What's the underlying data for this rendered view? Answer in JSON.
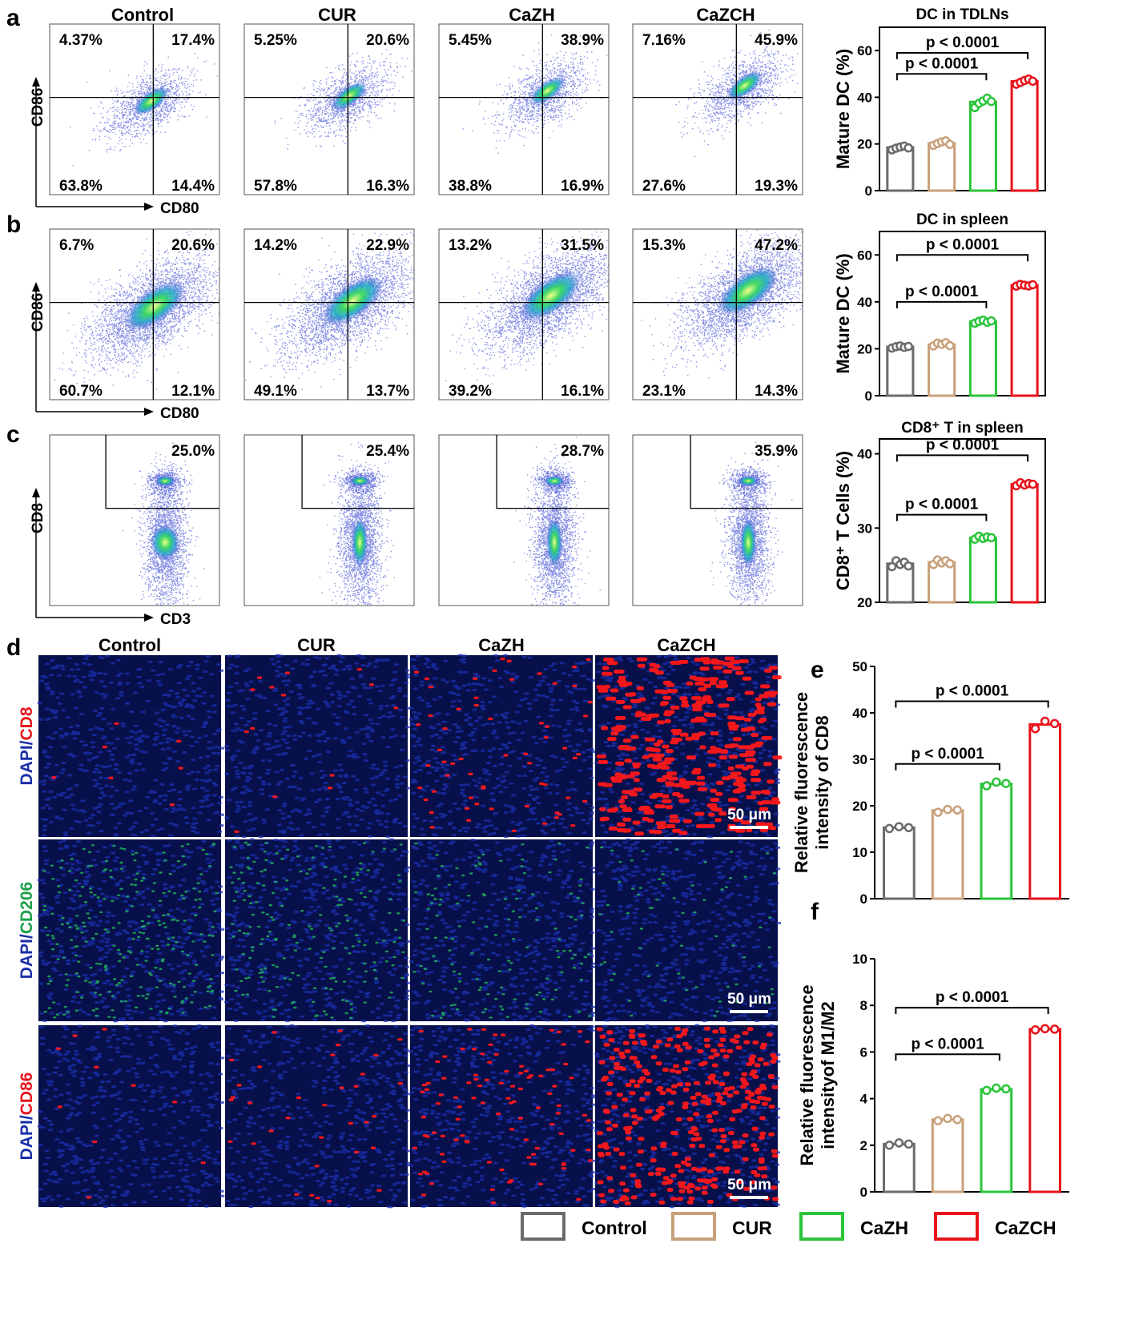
{
  "panel_letters": [
    "a",
    "b",
    "c",
    "d",
    "e",
    "f"
  ],
  "flow": {
    "groups": [
      "Control",
      "CUR",
      "CaZH",
      "CaZCH"
    ],
    "rows": [
      {
        "letter": "a",
        "x_label": "CD80",
        "y_label": "CD86",
        "quadrants": [
          {
            "ul": "4.37%",
            "ur": "17.4%",
            "ll": "63.8%",
            "lr": "14.4%"
          },
          {
            "ul": "5.25%",
            "ur": "20.6%",
            "ll": "57.8%",
            "lr": "16.3%"
          },
          {
            "ul": "5.45%",
            "ur": "38.9%",
            "ll": "38.8%",
            "lr": "16.9%"
          },
          {
            "ul": "7.16%",
            "ur": "45.9%",
            "ll": "27.6%",
            "lr": "19.3%"
          }
        ]
      },
      {
        "letter": "b",
        "x_label": "CD80",
        "y_label": "CD86",
        "quadrants": [
          {
            "ul": "6.7%",
            "ur": "20.6%",
            "ll": "60.7%",
            "lr": "12.1%"
          },
          {
            "ul": "14.2%",
            "ur": "22.9%",
            "ll": "49.1%",
            "lr": "13.7%"
          },
          {
            "ul": "13.2%",
            "ur": "31.5%",
            "ll": "39.2%",
            "lr": "16.1%"
          },
          {
            "ul": "15.3%",
            "ur": "47.2%",
            "ll": "23.1%",
            "lr": "14.3%"
          }
        ]
      },
      {
        "letter": "c",
        "x_label": "CD3",
        "y_label": "CD8",
        "gate": [
          "25.0%",
          "25.4%",
          "28.7%",
          "35.9%"
        ]
      }
    ]
  },
  "microscopy": {
    "letter": "d",
    "columns": [
      "Control",
      "CUR",
      "CaZH",
      "CaZCH"
    ],
    "rows": [
      {
        "stain_a": "DAPI",
        "sep": "/",
        "stain_b": "CD8",
        "stain_b_color": "#e8141c"
      },
      {
        "stain_a": "DAPI",
        "sep": "/",
        "stain_b": "CD206",
        "stain_b_color": "#1aa04a"
      },
      {
        "stain_a": "DAPI",
        "sep": "/",
        "stain_b": "CD86",
        "stain_b_color": "#e8141c"
      }
    ],
    "scale_bar": "50 μm",
    "dapi_color": "#1a2fa8"
  },
  "legend": [
    "Control",
    "CUR",
    "CaZH",
    "CaZCH"
  ],
  "group_colors": [
    "#6b6b6b",
    "#c8a07a",
    "#2bc43a",
    "#e8141c"
  ],
  "chart_data": [
    {
      "type": "bar",
      "title": "DC in TDLNs",
      "ylabel": "Mature DC (%)",
      "categories": [
        "Control",
        "CUR",
        "CaZH",
        "CaZCH"
      ],
      "values": [
        18.5,
        20.3,
        38.0,
        46.8
      ],
      "points": [
        [
          17.5,
          18.2,
          18.7,
          19.1,
          18.3
        ],
        [
          19.4,
          20.2,
          20.9,
          21.3,
          19.8
        ],
        [
          35.6,
          37.4,
          38.4,
          39.6,
          38.2
        ],
        [
          45.6,
          46.4,
          47.2,
          47.8,
          46.9
        ]
      ],
      "ylim": [
        0,
        70
      ],
      "yticks": [
        0,
        20,
        40,
        60
      ],
      "annotations": [
        {
          "text": "p < 0.0001",
          "from": 0,
          "to": 2
        },
        {
          "text": "p < 0.0001",
          "from": 0,
          "to": 3
        }
      ]
    },
    {
      "type": "bar",
      "title": "DC in spleen",
      "ylabel": "Mature DC (%)",
      "categories": [
        "Control",
        "CUR",
        "CaZH",
        "CaZCH"
      ],
      "values": [
        20.8,
        21.8,
        31.6,
        47.0
      ],
      "points": [
        [
          20.3,
          20.9,
          21.2,
          20.6,
          21.0
        ],
        [
          21.2,
          22.4,
          21.9,
          22.6,
          21.3
        ],
        [
          30.9,
          31.7,
          32.2,
          31.3,
          31.9
        ],
        [
          46.7,
          47.4,
          47.1,
          46.8,
          47.3
        ]
      ],
      "ylim": [
        0,
        70
      ],
      "yticks": [
        0,
        20,
        40,
        60
      ],
      "annotations": [
        {
          "text": "p < 0.0001",
          "from": 0,
          "to": 2
        },
        {
          "text": "p < 0.0001",
          "from": 0,
          "to": 3
        }
      ]
    },
    {
      "type": "bar",
      "title": "CD8⁺ T in spleen",
      "ylabel": "CD8⁺ T Cells (%)",
      "categories": [
        "Control",
        "CUR",
        "CaZH",
        "CaZCH"
      ],
      "values": [
        25.2,
        25.4,
        28.7,
        35.9
      ],
      "points": [
        [
          24.8,
          25.6,
          25.1,
          25.4,
          24.9
        ],
        [
          25.1,
          25.7,
          25.3,
          25.6,
          25.2
        ],
        [
          28.5,
          28.9,
          28.6,
          28.8,
          28.7
        ],
        [
          35.7,
          36.1,
          35.8,
          36.0,
          35.9
        ]
      ],
      "ylim": [
        20,
        42
      ],
      "yticks": [
        20,
        30,
        40
      ],
      "annotations": [
        {
          "text": "p < 0.0001",
          "from": 0,
          "to": 2
        },
        {
          "text": "p < 0.0001",
          "from": 0,
          "to": 3
        }
      ]
    },
    {
      "type": "bar",
      "title": "",
      "ylabel": "Relative fluorescence intensity of CD8",
      "ylabel_lines": [
        "Relative fluorescence",
        "intensity of CD8"
      ],
      "categories": [
        "Control",
        "CUR",
        "CaZH",
        "CaZCH"
      ],
      "values": [
        15.3,
        19.0,
        24.7,
        37.5
      ],
      "points": [
        [
          15.1,
          15.5,
          15.3
        ],
        [
          18.6,
          19.2,
          19.1
        ],
        [
          24.3,
          25.1,
          24.8
        ],
        [
          36.6,
          38.2,
          37.7
        ]
      ],
      "ylim": [
        0,
        50
      ],
      "yticks": [
        0,
        10,
        20,
        30,
        40,
        50
      ],
      "annotations": [
        {
          "text": "p < 0.0001",
          "from": 0,
          "to": 2
        },
        {
          "text": "p < 0.0001",
          "from": 0,
          "to": 3
        }
      ]
    },
    {
      "type": "bar",
      "title": "",
      "ylabel": "Relative fluorescence intensityof M1/M2",
      "ylabel_lines": [
        "Relative fluorescence",
        "intensityof M1/M2"
      ],
      "categories": [
        "Control",
        "CUR",
        "CaZH",
        "CaZCH"
      ],
      "values": [
        2.05,
        3.1,
        4.4,
        6.98
      ],
      "points": [
        [
          2.0,
          2.1,
          2.05
        ],
        [
          3.05,
          3.15,
          3.1
        ],
        [
          4.35,
          4.45,
          4.42
        ],
        [
          6.95,
          7.0,
          6.98
        ]
      ],
      "ylim": [
        0,
        10
      ],
      "yticks": [
        0,
        2,
        4,
        6,
        8,
        10
      ],
      "annotations": [
        {
          "text": "p < 0.0001",
          "from": 0,
          "to": 2
        },
        {
          "text": "p < 0.0001",
          "from": 0,
          "to": 3
        }
      ]
    }
  ]
}
